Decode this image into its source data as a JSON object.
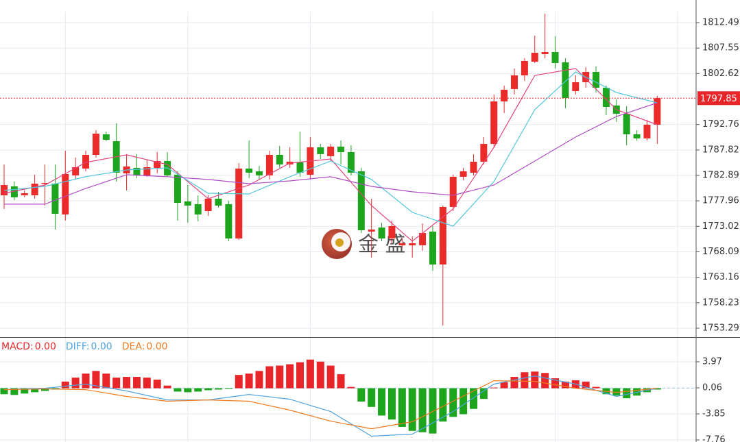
{
  "chart_data": [
    {
      "type": "candlestick",
      "up_color": "#eb2a2a",
      "down_color": "#1ea51e",
      "ylim": [
        1751.56,
        1816.87
      ],
      "yticks": [
        1812.49,
        1807.55,
        1802.62,
        1792.76,
        1787.82,
        1782.89,
        1777.96,
        1773.02,
        1768.09,
        1763.16,
        1758.23,
        1753.29
      ],
      "grid": true,
      "open": [
        1779.04,
        1780.77,
        1779.04,
        1779.04,
        1781.3,
        1781.3,
        1775.33,
        1782.89,
        1784.22,
        1786.87,
        1790.85,
        1789.53,
        1783.29,
        1784.35,
        1782.89,
        1784.35,
        1785.68,
        1783.02,
        1777.85,
        1777.32,
        1775.99,
        1778.38,
        1777.32,
        1770.68,
        1784.22,
        1783.69,
        1782.89,
        1786.87,
        1785.01,
        1785.41,
        1783.02,
        1788.33,
        1786.61,
        1788.47,
        1787.41,
        1783.69,
        1772.01,
        1772.8,
        1770.68,
        1769.35,
        1769.35,
        1769.35,
        1772.01,
        1765.64,
        1776.79,
        1782.63,
        1783.42,
        1785.55,
        1788.99,
        1797.23,
        1799.62,
        1802.27,
        1804.92,
        1806.38,
        1806.78,
        1804.79,
        1799.22,
        1800.94,
        1802.93,
        1799.88,
        1796.43,
        1794.84,
        1790.85,
        1790.06,
        1792.71
      ],
      "high": [
        1785.01,
        1781.7,
        1779.97,
        1783.02,
        1785.01,
        1785.01,
        1787.67,
        1786.34,
        1787.67,
        1791.65,
        1791.39,
        1792.98,
        1787.01,
        1787.01,
        1785.94,
        1787.41,
        1787.41,
        1783.69,
        1781.03,
        1779.04,
        1779.04,
        1779.71,
        1777.98,
        1785.28,
        1789.66,
        1784.75,
        1787.67,
        1788.6,
        1788.33,
        1791.39,
        1790.32,
        1788.99,
        1788.99,
        1789.66,
        1788.73,
        1784.35,
        1778.38,
        1773.73,
        1774.13,
        1770.68,
        1771.08,
        1773.6,
        1773.07,
        1777.05,
        1783.02,
        1784.35,
        1787.01,
        1790.32,
        1798.55,
        1800.28,
        1803.6,
        1805.59,
        1809.97,
        1814.22,
        1809.84,
        1805.59,
        1802.27,
        1803.86,
        1803.99,
        1800.28,
        1797.62,
        1796.3,
        1791.65,
        1793.64,
        1798.29
      ],
      "low": [
        1776.39,
        1778.11,
        1778.64,
        1778.38,
        1777.05,
        1772.41,
        1774.13,
        1782.1,
        1783.69,
        1786.34,
        1789.53,
        1781.7,
        1779.97,
        1782.36,
        1782.63,
        1783.29,
        1782.63,
        1774.13,
        1773.73,
        1774.0,
        1775.06,
        1776.65,
        1770.15,
        1770.41,
        1782.36,
        1782.1,
        1782.1,
        1784.35,
        1784.35,
        1782.63,
        1782.1,
        1786.08,
        1785.68,
        1785.01,
        1782.89,
        1771.74,
        1766.96,
        1770.15,
        1769.75,
        1768.82,
        1766.96,
        1768.29,
        1764.44,
        1753.82,
        1775.99,
        1781.96,
        1782.89,
        1785.01,
        1788.33,
        1794.97,
        1798.55,
        1801.21,
        1804.66,
        1805.59,
        1803.6,
        1795.9,
        1798.55,
        1799.88,
        1798.95,
        1794.57,
        1793.25,
        1788.73,
        1789.66,
        1789.66,
        1788.99
      ],
      "close": [
        1781.03,
        1778.64,
        1779.44,
        1781.3,
        1781.43,
        1775.46,
        1783.16,
        1784.48,
        1786.87,
        1790.99,
        1789.79,
        1783.42,
        1784.62,
        1782.89,
        1784.48,
        1785.68,
        1782.89,
        1777.58,
        1777.05,
        1775.33,
        1778.38,
        1777.05,
        1770.68,
        1784.22,
        1783.42,
        1782.89,
        1786.87,
        1785.01,
        1785.55,
        1783.42,
        1788.33,
        1787.01,
        1788.47,
        1787.41,
        1783.42,
        1772.27,
        1772.41,
        1770.68,
        1773.07,
        1769.75,
        1769.75,
        1771.74,
        1765.64,
        1776.79,
        1782.63,
        1783.69,
        1785.55,
        1788.99,
        1797.23,
        1799.48,
        1802.27,
        1805.06,
        1806.65,
        1806.78,
        1804.66,
        1797.89,
        1800.94,
        1802.93,
        1799.88,
        1796.16,
        1794.84,
        1790.85,
        1790.06,
        1792.71,
        1797.85
      ],
      "series": [
        {
          "color": "#e2457e",
          "x": [
            0,
            4,
            8,
            12,
            16,
            20,
            24,
            28,
            32,
            36,
            40,
            44,
            48,
            52,
            56,
            60,
            64
          ],
          "values": [
            1779.44,
            1781.03,
            1785.41,
            1786.87,
            1785.01,
            1778.38,
            1781.03,
            1785.28,
            1786.08,
            1777.05,
            1770.15,
            1776.39,
            1788.33,
            1802.27,
            1803.6,
            1795.63,
            1792.71
          ]
        },
        {
          "color": "#52c6dc",
          "x": [
            0,
            4,
            8,
            12,
            16,
            20,
            24,
            28,
            32,
            36,
            40,
            44,
            48,
            52,
            56,
            60,
            64
          ],
          "values": [
            1779.97,
            1780.77,
            1782.63,
            1783.95,
            1784.35,
            1779.44,
            1779.31,
            1782.63,
            1785.68,
            1782.1,
            1775.73,
            1773.07,
            1781.7,
            1795.63,
            1802.93,
            1798.95,
            1796.96
          ]
        },
        {
          "color": "#b04cc4",
          "x": [
            0,
            4,
            8,
            12,
            16,
            20,
            24,
            28,
            32,
            36,
            40,
            44,
            48,
            52,
            56,
            60,
            64
          ],
          "values": [
            1777.32,
            1777.32,
            1780.37,
            1783.02,
            1782.63,
            1782.1,
            1781.3,
            1781.83,
            1782.63,
            1780.77,
            1779.71,
            1779.04,
            1781.03,
            1785.68,
            1790.32,
            1794.3,
            1796.96
          ]
        }
      ],
      "last_price": 1797.85,
      "last_price_color": "#e8262a",
      "watermark": "金 盛"
    },
    {
      "type": "macd",
      "ylim": [
        -8.07,
        7.67
      ],
      "yticks": [
        3.97,
        0.06,
        -3.85,
        -7.76
      ],
      "histogram": {
        "name": "MACD:",
        "readout": {
          "value": 0,
          "label": "0.00"
        },
        "color": "#e8262a",
        "up_color": "#e8262a",
        "down_color": "#1ea51e",
        "values": [
          -0.9,
          -1.0,
          -0.8,
          -0.6,
          -0.4,
          -0.2,
          1.0,
          1.6,
          2.2,
          2.6,
          2.2,
          1.6,
          1.7,
          1.7,
          1.6,
          1.3,
          0.4,
          -0.5,
          -0.6,
          -0.5,
          -0.3,
          -0.2,
          -0.1,
          2.0,
          2.2,
          2.6,
          3.3,
          3.4,
          3.6,
          3.9,
          4.3,
          4.0,
          3.4,
          2.1,
          0.2,
          -2.0,
          -2.8,
          -4.1,
          -4.7,
          -5.8,
          -6.4,
          -6.6,
          -6.8,
          -5.0,
          -4.3,
          -3.9,
          -3.1,
          -1.6,
          0.1,
          0.9,
          1.7,
          2.4,
          2.5,
          2.3,
          1.5,
          1.0,
          1.2,
          1.0,
          0.2,
          -0.9,
          -1.1,
          -1.5,
          -1.1,
          -0.6,
          -0.2
        ]
      },
      "series": [
        {
          "name": "DIFF:",
          "readout": {
            "value": 0,
            "label": "0.00"
          },
          "color": "#4ea3e0",
          "x": [
            0,
            4,
            8,
            12,
            16,
            20,
            24,
            28,
            32,
            36,
            40,
            44,
            48,
            52,
            56,
            60,
            64
          ],
          "values": [
            -0.21,
            0,
            0.62,
            -0.41,
            -1.75,
            -1.75,
            -0.93,
            -1.65,
            -3.5,
            -7.2,
            -6.89,
            -3.5,
            0.62,
            1.85,
            0.62,
            -1.23,
            0
          ]
        },
        {
          "name": "DEA:",
          "readout": {
            "value": 0,
            "label": "0.00"
          },
          "color": "#ef7a1e",
          "x": [
            0,
            4,
            8,
            12,
            16,
            20,
            24,
            28,
            32,
            36,
            40,
            44,
            48,
            52,
            56,
            60,
            64
          ],
          "values": [
            -0.21,
            -0.1,
            -0.21,
            -1.23,
            -1.95,
            -1.75,
            -1.95,
            -3.29,
            -4.94,
            -6.07,
            -5.04,
            -1.95,
            1.13,
            1.03,
            0,
            -0.62,
            0
          ]
        }
      ]
    }
  ]
}
